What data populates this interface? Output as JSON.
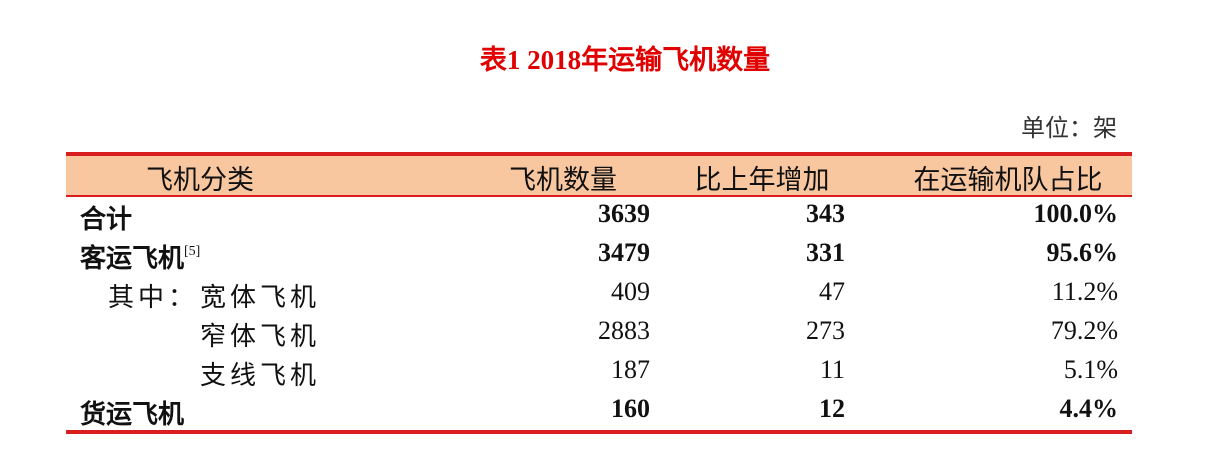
{
  "title": "表1 2018年运输飞机数量",
  "unit": "单位：架",
  "table": {
    "header": [
      "飞机分类",
      "飞机数量",
      "比上年增加",
      "在运输机队占比"
    ],
    "rows": [
      {
        "label": "合计",
        "cells": [
          "3639",
          "343",
          "100.0%"
        ],
        "bold": true,
        "level": 0
      },
      {
        "label": "客运飞机",
        "note": "[5]",
        "cells": [
          "3479",
          "331",
          "95.6%"
        ],
        "bold": true,
        "level": 0
      },
      {
        "prefix": "其中：",
        "label": "宽体飞机",
        "cells": [
          "409",
          "47",
          "11.2%"
        ],
        "bold": false,
        "level": 1
      },
      {
        "label": "窄体飞机",
        "cells": [
          "2883",
          "273",
          "79.2%"
        ],
        "bold": false,
        "level": 1
      },
      {
        "label": "支线飞机",
        "cells": [
          "187",
          "11",
          "5.1%"
        ],
        "bold": false,
        "level": 1
      },
      {
        "label": "货运飞机",
        "cells": [
          "160",
          "12",
          "4.4%"
        ],
        "bold": true,
        "level": 0
      }
    ]
  }
}
